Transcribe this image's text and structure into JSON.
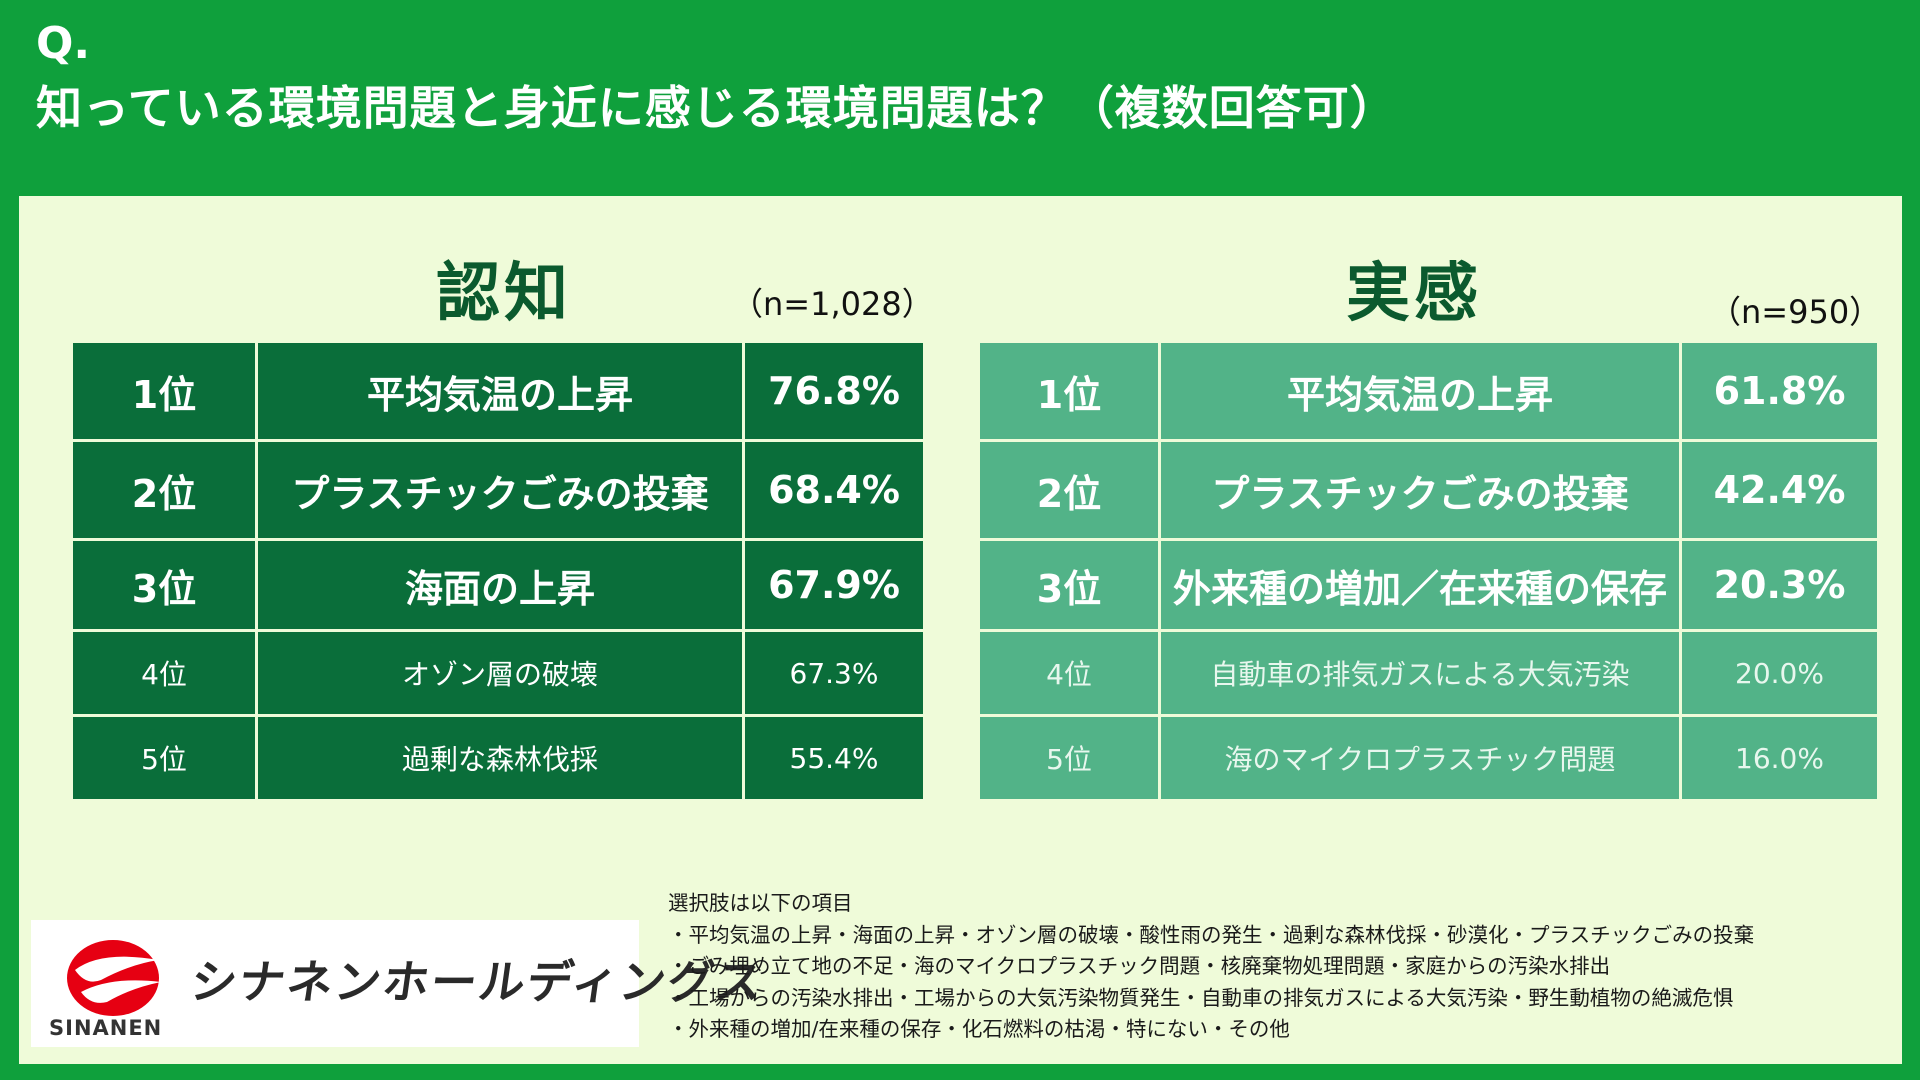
{
  "header": {
    "q_label": "Q.",
    "title": "知っている環境問題と身近に感じる環境問題は？（複数回答可）"
  },
  "awareness": {
    "title": "認知",
    "sample": "（n=1,028）",
    "rows": [
      {
        "rank": "1位",
        "item": "平均気温の上昇",
        "pct": "76.8%"
      },
      {
        "rank": "2位",
        "item": "プラスチックごみの投棄",
        "pct": "68.4%"
      },
      {
        "rank": "3位",
        "item": "海面の上昇",
        "pct": "67.9%"
      },
      {
        "rank": "4位",
        "item": "オゾン層の破壊",
        "pct": "67.3%"
      },
      {
        "rank": "5位",
        "item": "過剰な森林伐採",
        "pct": "55.4%"
      }
    ]
  },
  "feeling": {
    "title": "実感",
    "sample": "（n=950）",
    "rows": [
      {
        "rank": "1位",
        "item": "平均気温の上昇",
        "pct": "61.8%"
      },
      {
        "rank": "2位",
        "item": "プラスチックごみの投棄",
        "pct": "42.4%"
      },
      {
        "rank": "3位",
        "item": "外来種の増加／在来種の保存",
        "pct": "20.3%"
      },
      {
        "rank": "4位",
        "item": "自動車の排気ガスによる大気汚染",
        "pct": "20.0%"
      },
      {
        "rank": "5位",
        "item": "海のマイクロプラスチック問題",
        "pct": "16.0%"
      }
    ]
  },
  "choices": {
    "heading": "選択肢は以下の項目",
    "lines": [
      "・平均気温の上昇・海面の上昇・オゾン層の破壊・酸性雨の発生・過剰な森林伐採・砂漠化・プラスチックごみの投棄",
      "・ごみ埋め立て地の不足・海のマイクロプラスチック問題・核廃棄物処理問題・家庭からの汚染水排出",
      "・工場からの汚染水排出・工場からの大気汚染物質発生・自動車の排気ガスによる大気汚染・野生動植物の絶滅危惧",
      "・外来種の増加/在来種の保存・化石燃料の枯渇・特にない・その他"
    ]
  },
  "logo": {
    "name_jp": "シナネンホールディングス",
    "name_en": "SINANEN",
    "mark_color": "#e60012"
  },
  "colors": {
    "background": "#0fa03c",
    "panel": "#effbd9",
    "awareness_cells": "#0a6e3a",
    "feeling_cells": "#52b388",
    "section_title": "#0b5a2e"
  }
}
